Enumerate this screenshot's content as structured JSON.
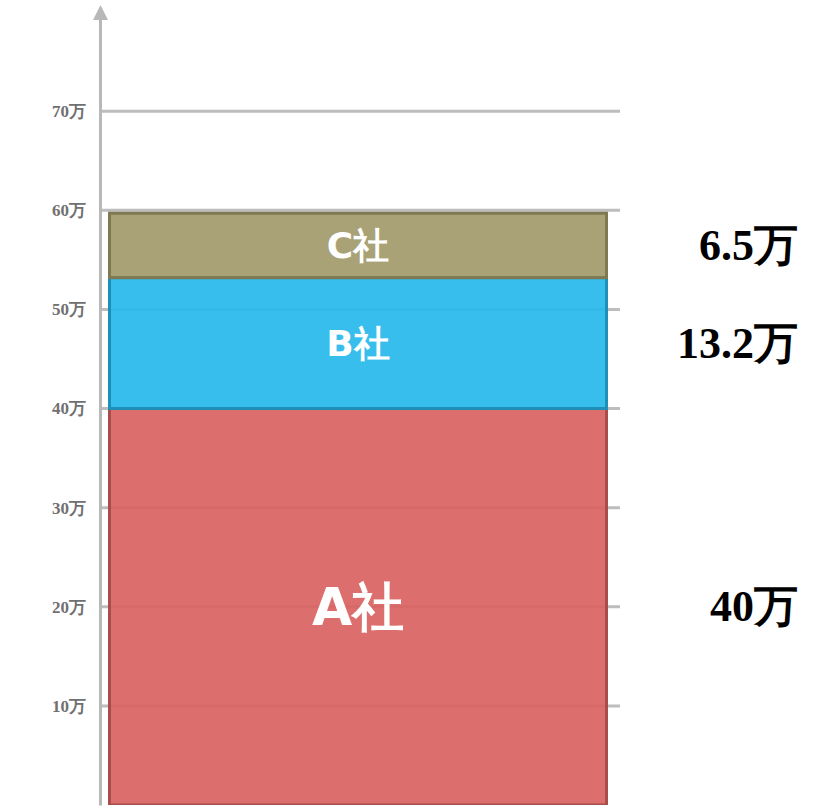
{
  "chart_data": {
    "type": "bar",
    "stacked": true,
    "data_labels": true,
    "tick_labels": "y",
    "grid": true,
    "categories": [
      null
    ],
    "ylim": [
      0,
      80
    ],
    "yticks": [
      {
        "value": 10,
        "label": "10万"
      },
      {
        "value": 20,
        "label": "20万"
      },
      {
        "value": 30,
        "label": "30万"
      },
      {
        "value": 40,
        "label": "40万"
      },
      {
        "value": 50,
        "label": "50万"
      },
      {
        "value": 60,
        "label": "60万"
      },
      {
        "value": 70,
        "label": "70万"
      }
    ],
    "series": [
      {
        "name": "A社",
        "color": "#d96262",
        "values": [
          40
        ],
        "value_labels": [
          "40万"
        ]
      },
      {
        "name": "B社",
        "color": "#27b9ec",
        "values": [
          13.2
        ],
        "value_labels": [
          "13.2万"
        ]
      },
      {
        "name": "C社",
        "color": "#a29a6b",
        "values": [
          6.5
        ],
        "value_labels": [
          "6.5万"
        ]
      }
    ]
  }
}
